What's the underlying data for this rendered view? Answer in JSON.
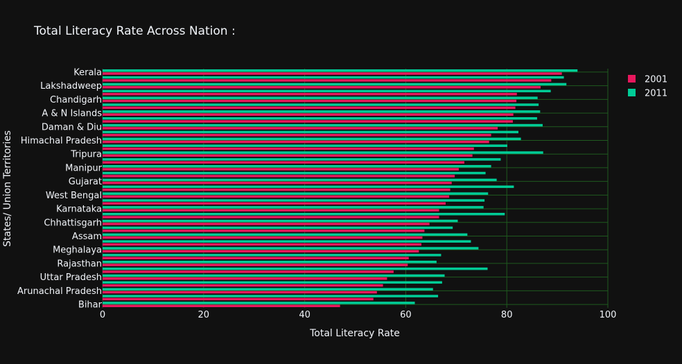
{
  "chart_data": {
    "type": "bar",
    "orientation": "horizontal",
    "title": "Total Literacy Rate Across Nation :",
    "xlabel": "Total Literacy Rate",
    "ylabel": "States/ Union Territories",
    "xlim": [
      0,
      100
    ],
    "x_ticks": [
      "0",
      "20",
      "40",
      "60",
      "80",
      "100"
    ],
    "x_tick_values": [
      0,
      20,
      40,
      60,
      80,
      100
    ],
    "grid": true,
    "legend_position": "top-right",
    "categories": [
      "Kerala",
      "",
      "Lakshadweep",
      "",
      "Chandigarh",
      "",
      "A & N Islands",
      "",
      "Daman & Diu",
      "",
      "Himachal Pradesh",
      "",
      "Tripura",
      "",
      "Manipur",
      "",
      "Gujarat",
      "",
      "West Bengal",
      "",
      "Karnataka",
      "",
      "Chhattisgarh",
      "",
      "Assam",
      "",
      "Meghalaya",
      "",
      "Rajasthan",
      "",
      "Uttar Pradesh",
      "",
      "Arunachal Pradesh",
      "",
      "Bihar"
    ],
    "series": [
      {
        "name": "2001",
        "color": "#e8175d",
        "values": [
          90.9,
          88.8,
          86.7,
          82.0,
          81.9,
          81.7,
          81.3,
          81.2,
          78.2,
          76.9,
          76.5,
          73.5,
          73.2,
          71.6,
          70.5,
          69.7,
          69.1,
          68.8,
          68.6,
          67.9,
          66.6,
          66.6,
          64.7,
          63.7,
          63.3,
          63.1,
          62.6,
          60.6,
          60.4,
          57.6,
          56.3,
          55.5,
          54.3,
          53.6,
          47.0
        ]
      },
      {
        "name": "2011",
        "color": "#00cc96",
        "values": [
          94.0,
          91.3,
          91.8,
          88.7,
          86.1,
          86.3,
          86.6,
          86.0,
          87.1,
          82.3,
          82.8,
          80.1,
          87.2,
          78.8,
          76.9,
          75.8,
          78.0,
          81.4,
          76.3,
          75.6,
          75.4,
          79.6,
          70.3,
          69.3,
          72.2,
          72.9,
          74.4,
          67.0,
          66.1,
          76.2,
          67.7,
          67.2,
          65.4,
          66.4,
          61.8
        ]
      }
    ]
  }
}
